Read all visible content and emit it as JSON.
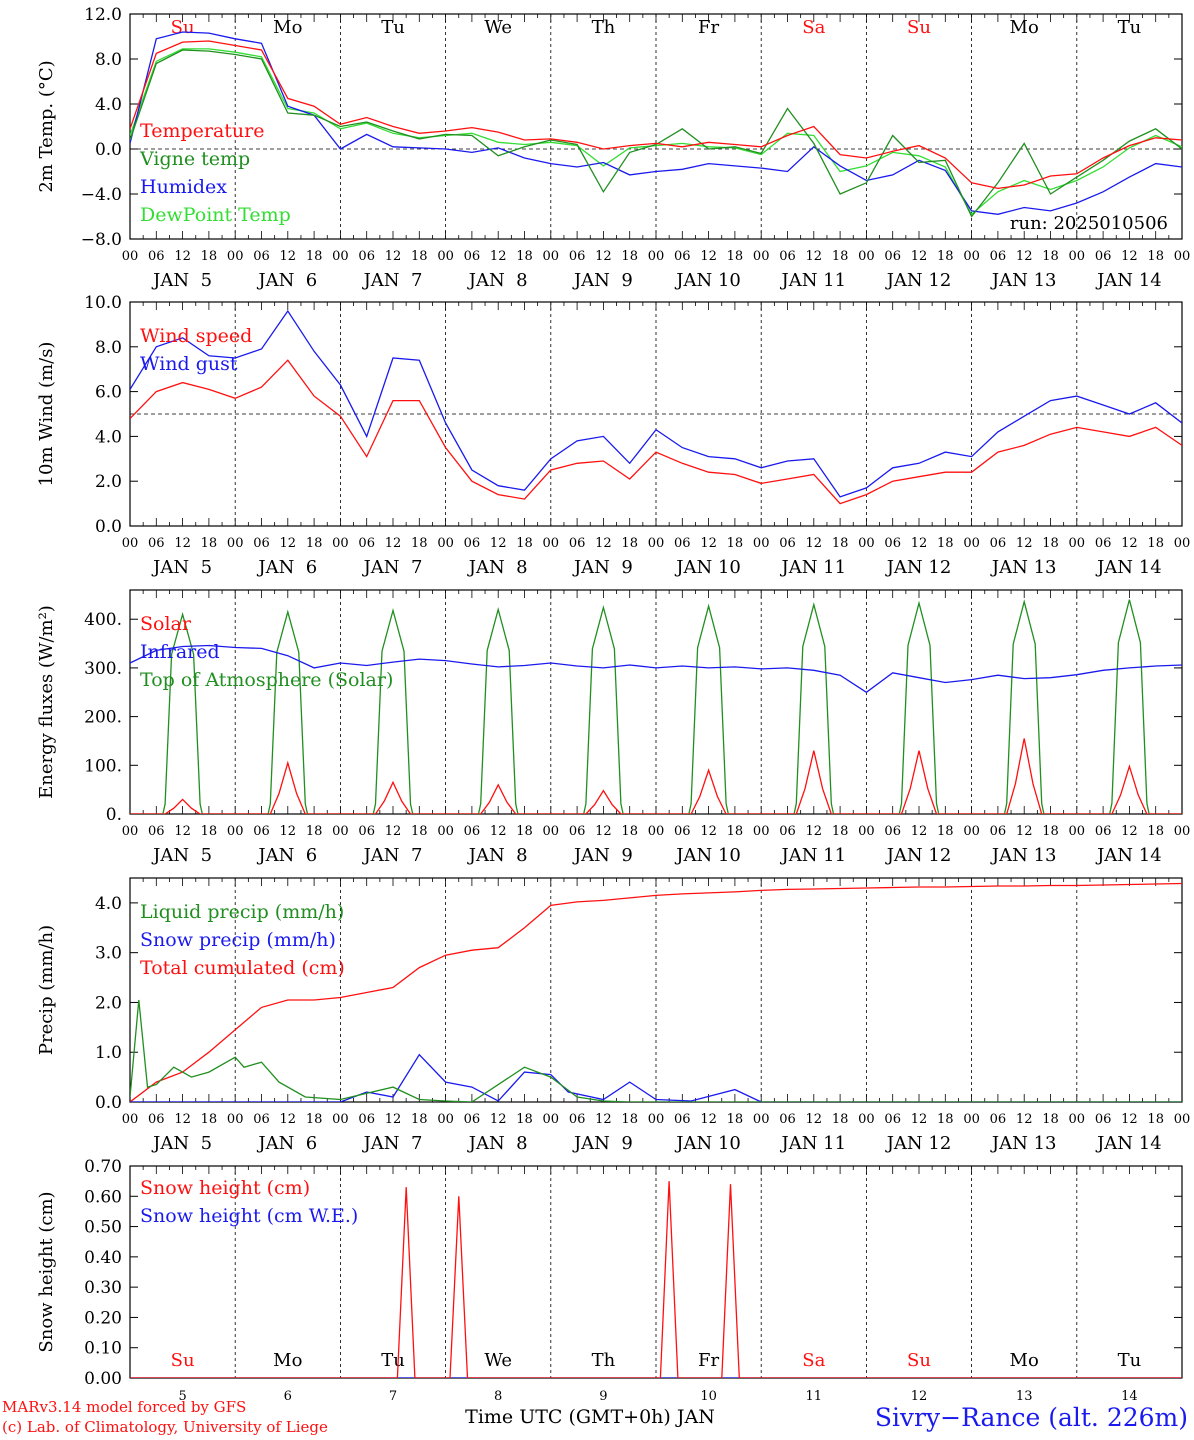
{
  "footer": {
    "credit_line1": "MARv3.14 model forced by GFS",
    "credit_line2": "(c) Lab. of Climatology, University of Liege",
    "xlabel": "Time UTC (GMT+0h) JAN",
    "station": "Sivry−Rance (alt. 226m)"
  },
  "colors": {
    "red": "#ff1010",
    "green": "#208f20",
    "blue": "#1a1aee",
    "lime": "#33dd33",
    "axis": "#000000"
  },
  "weekdays": [
    "Su",
    "Mo",
    "Tu",
    "We",
    "Th",
    "Fr",
    "Sa",
    "Su",
    "Mo",
    "Tu"
  ],
  "weekday_colors": [
    "red",
    "black",
    "black",
    "black",
    "black",
    "black",
    "red",
    "red",
    "black",
    "black"
  ],
  "date_labels": [
    "JAN  5",
    "JAN  6",
    "JAN  7",
    "JAN  8",
    "JAN  9",
    "JAN 10",
    "JAN 11",
    "JAN 12",
    "JAN 13",
    "JAN 14"
  ],
  "day_numbers": [
    "5",
    "6",
    "7",
    "8",
    "9",
    "10",
    "11",
    "12",
    "13",
    "14"
  ],
  "hour_ticks": [
    "00",
    "06",
    "12",
    "18"
  ],
  "chart_data": [
    {
      "type": "line",
      "ylabel": "2m Temp. (°C)",
      "ylim": [
        -8,
        12
      ],
      "yticks": [
        "−8.0",
        "−4.0",
        "0.0",
        "4.0",
        "8.0",
        "12.0"
      ],
      "ytick_values": [
        -8,
        -4,
        0,
        4,
        8,
        12
      ],
      "refline": 0,
      "annotation": "run: 2025010506",
      "x_unit": "hours since 2025-01-05 00 UTC",
      "series": [
        {
          "name": "Temperature",
          "color": "red",
          "x": [
            0,
            6,
            12,
            18,
            24,
            30,
            36,
            42,
            48,
            54,
            60,
            66,
            72,
            78,
            84,
            90,
            96,
            102,
            108,
            114,
            120,
            126,
            132,
            138,
            144,
            150,
            156,
            162,
            168,
            174,
            180,
            186,
            192,
            198,
            204,
            210,
            216,
            222,
            228,
            234,
            240
          ],
          "values": [
            1.8,
            8.5,
            9.5,
            9.6,
            9.2,
            8.8,
            4.5,
            3.8,
            2.2,
            2.8,
            2.0,
            1.4,
            1.6,
            1.9,
            1.5,
            0.8,
            0.9,
            0.6,
            0.0,
            0.3,
            0.5,
            0.2,
            0.6,
            0.4,
            0.2,
            1.2,
            2.0,
            -0.5,
            -0.8,
            -0.2,
            0.3,
            -0.8,
            -3.0,
            -3.5,
            -3.2,
            -2.4,
            -2.2,
            -0.8,
            0.3,
            1.0,
            0.8
          ]
        },
        {
          "name": "Vigne temp",
          "color": "green",
          "x": [
            0,
            6,
            12,
            18,
            24,
            30,
            36,
            42,
            48,
            54,
            60,
            66,
            72,
            78,
            84,
            90,
            96,
            102,
            108,
            114,
            120,
            126,
            132,
            138,
            144,
            150,
            156,
            162,
            168,
            174,
            180,
            186,
            192,
            198,
            204,
            210,
            216,
            222,
            228,
            234,
            240
          ],
          "values": [
            0.8,
            7.6,
            8.8,
            8.7,
            8.4,
            8.0,
            3.2,
            3.0,
            2.0,
            2.4,
            1.6,
            0.9,
            1.3,
            1.2,
            -0.6,
            0.2,
            0.8,
            0.4,
            -3.8,
            -0.3,
            0.4,
            1.8,
            0.0,
            0.2,
            -0.4,
            3.6,
            0.5,
            -4.0,
            -3.0,
            1.2,
            -1.2,
            -1.0,
            -6.0,
            -3.0,
            0.5,
            -4.0,
            -2.5,
            -1.0,
            0.7,
            1.8,
            0.0
          ]
        },
        {
          "name": "Humidex",
          "color": "blue",
          "x": [
            0,
            6,
            12,
            18,
            24,
            30,
            36,
            42,
            48,
            54,
            60,
            66,
            72,
            78,
            84,
            90,
            96,
            102,
            108,
            114,
            120,
            126,
            132,
            138,
            144,
            150,
            156,
            162,
            168,
            174,
            180,
            186,
            192,
            198,
            204,
            210,
            216,
            222,
            228,
            234,
            240
          ],
          "values": [
            0.5,
            9.8,
            10.4,
            10.3,
            9.8,
            9.4,
            3.8,
            3.0,
            0.0,
            1.3,
            0.2,
            0.1,
            0.0,
            -0.3,
            0.1,
            -0.8,
            -1.3,
            -1.6,
            -1.2,
            -2.3,
            -2.0,
            -1.8,
            -1.3,
            -1.5,
            -1.7,
            -2.0,
            0.2,
            -1.5,
            -2.8,
            -2.3,
            -1.0,
            -1.9,
            -5.5,
            -5.8,
            -5.2,
            -5.5,
            -4.8,
            -3.8,
            -2.5,
            -1.3,
            -1.6
          ]
        },
        {
          "name": "DewPoint Temp",
          "color": "lime",
          "x": [
            0,
            6,
            12,
            18,
            24,
            30,
            36,
            42,
            48,
            54,
            60,
            66,
            72,
            78,
            84,
            90,
            96,
            102,
            108,
            114,
            120,
            126,
            132,
            138,
            144,
            150,
            156,
            162,
            168,
            174,
            180,
            186,
            192,
            198,
            204,
            210,
            216,
            222,
            228,
            234,
            240
          ],
          "values": [
            1.2,
            7.8,
            8.9,
            8.9,
            8.6,
            8.2,
            3.6,
            3.2,
            1.8,
            2.3,
            1.4,
            1.0,
            1.2,
            1.4,
            0.6,
            0.4,
            0.6,
            0.3,
            -1.5,
            0.1,
            0.3,
            0.5,
            0.2,
            0.1,
            -0.5,
            1.4,
            1.2,
            -2.0,
            -1.5,
            -0.3,
            -0.6,
            -1.6,
            -5.8,
            -3.8,
            -2.8,
            -3.6,
            -2.8,
            -1.6,
            0.1,
            1.2,
            0.2
          ]
        }
      ]
    },
    {
      "type": "line",
      "ylabel": "10m Wind (m/s)",
      "ylim": [
        0,
        10
      ],
      "yticks": [
        "0.0",
        "2.0",
        "4.0",
        "6.0",
        "8.0",
        "10.0"
      ],
      "ytick_values": [
        0,
        2,
        4,
        6,
        8,
        10
      ],
      "refline": 5,
      "x_unit": "hours since 2025-01-05 00 UTC",
      "series": [
        {
          "name": "Wind speed",
          "color": "red",
          "x": [
            0,
            6,
            12,
            18,
            24,
            30,
            36,
            42,
            48,
            54,
            60,
            66,
            72,
            78,
            84,
            90,
            96,
            102,
            108,
            114,
            120,
            126,
            132,
            138,
            144,
            150,
            156,
            162,
            168,
            174,
            180,
            186,
            192,
            198,
            204,
            210,
            216,
            222,
            228,
            234,
            240
          ],
          "values": [
            4.8,
            6.0,
            6.4,
            6.1,
            5.7,
            6.2,
            7.4,
            5.8,
            4.9,
            3.1,
            5.6,
            5.6,
            3.5,
            2.0,
            1.4,
            1.2,
            2.5,
            2.8,
            2.9,
            2.1,
            3.3,
            2.8,
            2.4,
            2.3,
            1.9,
            2.1,
            2.3,
            1.0,
            1.4,
            2.0,
            2.2,
            2.4,
            2.4,
            3.3,
            3.6,
            4.1,
            4.4,
            4.2,
            4.0,
            4.4,
            3.6
          ]
        },
        {
          "name": "Wind gust",
          "color": "blue",
          "x": [
            0,
            6,
            12,
            18,
            24,
            30,
            36,
            42,
            48,
            54,
            60,
            66,
            72,
            78,
            84,
            90,
            96,
            102,
            108,
            114,
            120,
            126,
            132,
            138,
            144,
            150,
            156,
            162,
            168,
            174,
            180,
            186,
            192,
            198,
            204,
            210,
            216,
            222,
            228,
            234,
            240
          ],
          "values": [
            6.1,
            8.0,
            8.4,
            7.6,
            7.5,
            7.9,
            9.6,
            7.8,
            6.3,
            4.0,
            7.5,
            7.4,
            4.6,
            2.5,
            1.8,
            1.6,
            3.0,
            3.8,
            4.0,
            2.8,
            4.3,
            3.5,
            3.1,
            3.0,
            2.6,
            2.9,
            3.0,
            1.3,
            1.7,
            2.6,
            2.8,
            3.3,
            3.1,
            4.2,
            4.9,
            5.6,
            5.8,
            5.4,
            5.0,
            5.5,
            4.6
          ]
        }
      ]
    },
    {
      "type": "line",
      "ylabel": "Energy fluxes (W/m²)",
      "ylim": [
        0,
        460
      ],
      "yticks": [
        "0.",
        "100.",
        "200.",
        "300.",
        "400."
      ],
      "ytick_values": [
        0,
        100,
        200,
        300,
        400
      ],
      "x_unit": "hours since 2025-01-05 00 UTC",
      "solar_peaks": [
        30,
        105,
        65,
        60,
        48,
        90,
        130,
        130,
        155,
        98
      ],
      "toa_peaks": [
        410,
        415,
        418,
        420,
        424,
        427,
        430,
        433,
        436,
        440
      ],
      "series": [
        {
          "name": "Solar",
          "color": "red"
        },
        {
          "name": "Infrared",
          "color": "blue",
          "x": [
            0,
            6,
            12,
            18,
            24,
            30,
            36,
            42,
            48,
            54,
            60,
            66,
            72,
            78,
            84,
            90,
            96,
            102,
            108,
            114,
            120,
            126,
            132,
            138,
            144,
            150,
            156,
            162,
            168,
            174,
            180,
            186,
            192,
            198,
            204,
            210,
            216,
            222,
            228,
            234,
            240
          ],
          "values": [
            310,
            336,
            344,
            346,
            342,
            340,
            325,
            300,
            310,
            305,
            312,
            318,
            315,
            308,
            302,
            305,
            310,
            304,
            300,
            306,
            300,
            304,
            300,
            302,
            298,
            300,
            295,
            285,
            250,
            290,
            280,
            270,
            276,
            285,
            278,
            280,
            286,
            295,
            300,
            304,
            306
          ]
        },
        {
          "name": "Top of Atmosphere (Solar)",
          "color": "green"
        }
      ]
    },
    {
      "type": "line",
      "ylabel": "Precip (mm/h)",
      "ylim": [
        0,
        4.5
      ],
      "yticks": [
        "0.0",
        "1.0",
        "2.0",
        "3.0",
        "4.0"
      ],
      "ytick_values": [
        0,
        1,
        2,
        3,
        4
      ],
      "x_unit": "hours since 2025-01-05 00 UTC",
      "series": [
        {
          "name": "Liquid precip (mm/h)",
          "color": "green",
          "x": [
            0,
            2,
            4,
            6,
            10,
            14,
            18,
            24,
            26,
            30,
            34,
            40,
            48,
            60,
            66,
            72,
            78,
            90,
            96,
            102,
            108,
            114,
            126,
            144,
            240
          ],
          "values": [
            0.1,
            2.05,
            0.3,
            0.35,
            0.7,
            0.5,
            0.6,
            0.9,
            0.7,
            0.8,
            0.4,
            0.1,
            0.05,
            0.3,
            0.05,
            0.02,
            0.0,
            0.7,
            0.5,
            0.1,
            0.02,
            0.0,
            0.0,
            0.0,
            0.0
          ]
        },
        {
          "name": "Snow precip (mm/h)",
          "color": "blue",
          "x": [
            0,
            48,
            54,
            60,
            66,
            72,
            78,
            84,
            90,
            96,
            100,
            108,
            114,
            120,
            128,
            138,
            144,
            150,
            240
          ],
          "values": [
            0.0,
            0.0,
            0.2,
            0.1,
            0.95,
            0.4,
            0.3,
            0.02,
            0.6,
            0.55,
            0.2,
            0.05,
            0.4,
            0.05,
            0.02,
            0.25,
            0.0,
            0.0,
            0.0
          ]
        },
        {
          "name": "Total cumulated (cm)",
          "color": "red",
          "x": [
            0,
            6,
            12,
            18,
            24,
            30,
            36,
            42,
            48,
            54,
            60,
            66,
            72,
            78,
            84,
            90,
            96,
            102,
            108,
            114,
            120,
            126,
            132,
            138,
            144,
            150,
            156,
            162,
            168,
            174,
            180,
            186,
            192,
            198,
            204,
            210,
            216,
            222,
            228,
            234,
            240
          ],
          "values": [
            0.0,
            0.4,
            0.6,
            1.0,
            1.45,
            1.9,
            2.05,
            2.05,
            2.1,
            2.2,
            2.3,
            2.7,
            2.95,
            3.05,
            3.1,
            3.5,
            3.95,
            4.02,
            4.05,
            4.1,
            4.15,
            4.18,
            4.2,
            4.22,
            4.25,
            4.27,
            4.28,
            4.29,
            4.3,
            4.31,
            4.32,
            4.32,
            4.33,
            4.34,
            4.34,
            4.35,
            4.35,
            4.36,
            4.37,
            4.38,
            4.39
          ]
        }
      ]
    },
    {
      "type": "line",
      "ylabel": "Snow height (cm)",
      "ylim": [
        0,
        0.7
      ],
      "yticks": [
        "0.00",
        "0.10",
        "0.20",
        "0.30",
        "0.40",
        "0.50",
        "0.60",
        "0.70"
      ],
      "ytick_values": [
        0,
        0.1,
        0.2,
        0.3,
        0.4,
        0.5,
        0.6,
        0.7
      ],
      "x_unit": "hours since 2025-01-05 00 UTC",
      "series": [
        {
          "name": "Snow height (cm)",
          "color": "red",
          "x": [
            0,
            61,
            63,
            65,
            73,
            75,
            77,
            121,
            123,
            125,
            135,
            137,
            139,
            240
          ],
          "values": [
            0,
            0,
            0.63,
            0,
            0,
            0.6,
            0,
            0,
            0.65,
            0,
            0,
            0.64,
            0,
            0
          ]
        },
        {
          "name": "Snow height (cm W.E.)",
          "color": "blue",
          "x": [
            0,
            240
          ],
          "values": [
            0,
            0
          ]
        }
      ]
    }
  ]
}
